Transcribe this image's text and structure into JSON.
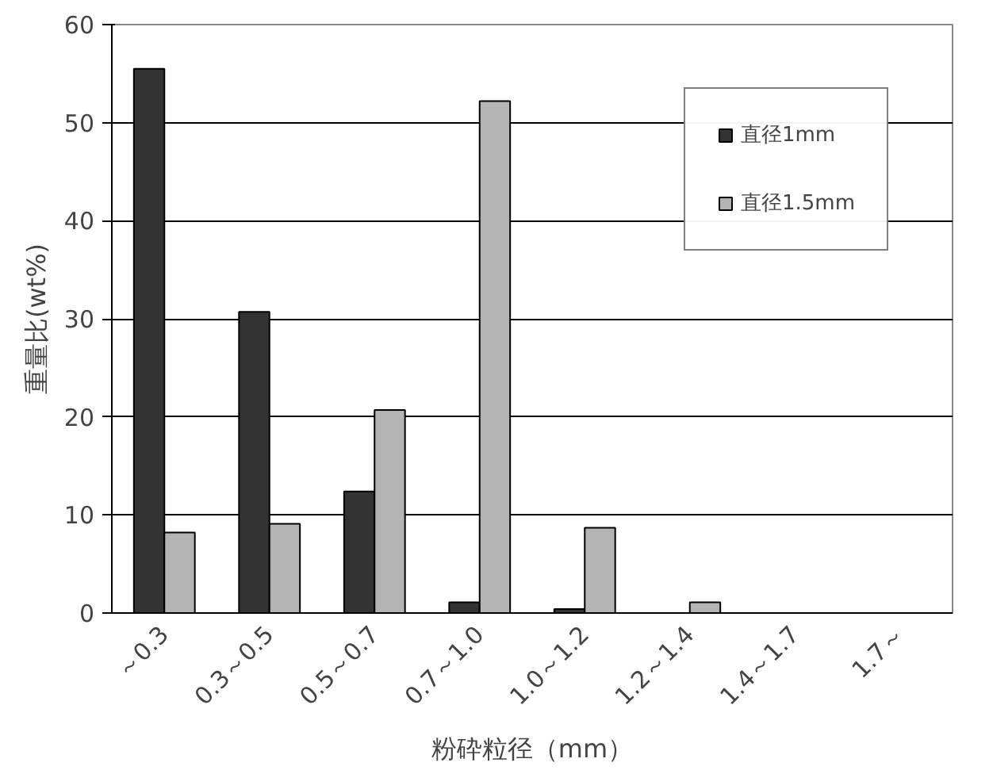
{
  "chart_data": {
    "type": "bar",
    "xlabel": "粉砕粒径（mm）",
    "ylabel": "重量比(wt%)",
    "categories": [
      "～0.3",
      "0.3～0.5",
      "0.5～0.7",
      "0.7～1.0",
      "1.0～1.2",
      "1.2～1.4",
      "1.4～1.7",
      "1.7～"
    ],
    "series": [
      {
        "name": "直径1mm",
        "color": "#333333",
        "values": [
          55.5,
          30.7,
          12.4,
          1.1,
          0.4,
          0,
          0,
          0
        ]
      },
      {
        "name": "直径1.5mm",
        "color": "#b4b4b4",
        "values": [
          8.2,
          9.1,
          20.7,
          52.2,
          8.7,
          1.1,
          0,
          0
        ]
      }
    ],
    "ylim": [
      0,
      60
    ],
    "yticks": [
      0,
      10,
      20,
      30,
      40,
      50,
      60
    ],
    "grid": "y",
    "legend": "top right"
  }
}
